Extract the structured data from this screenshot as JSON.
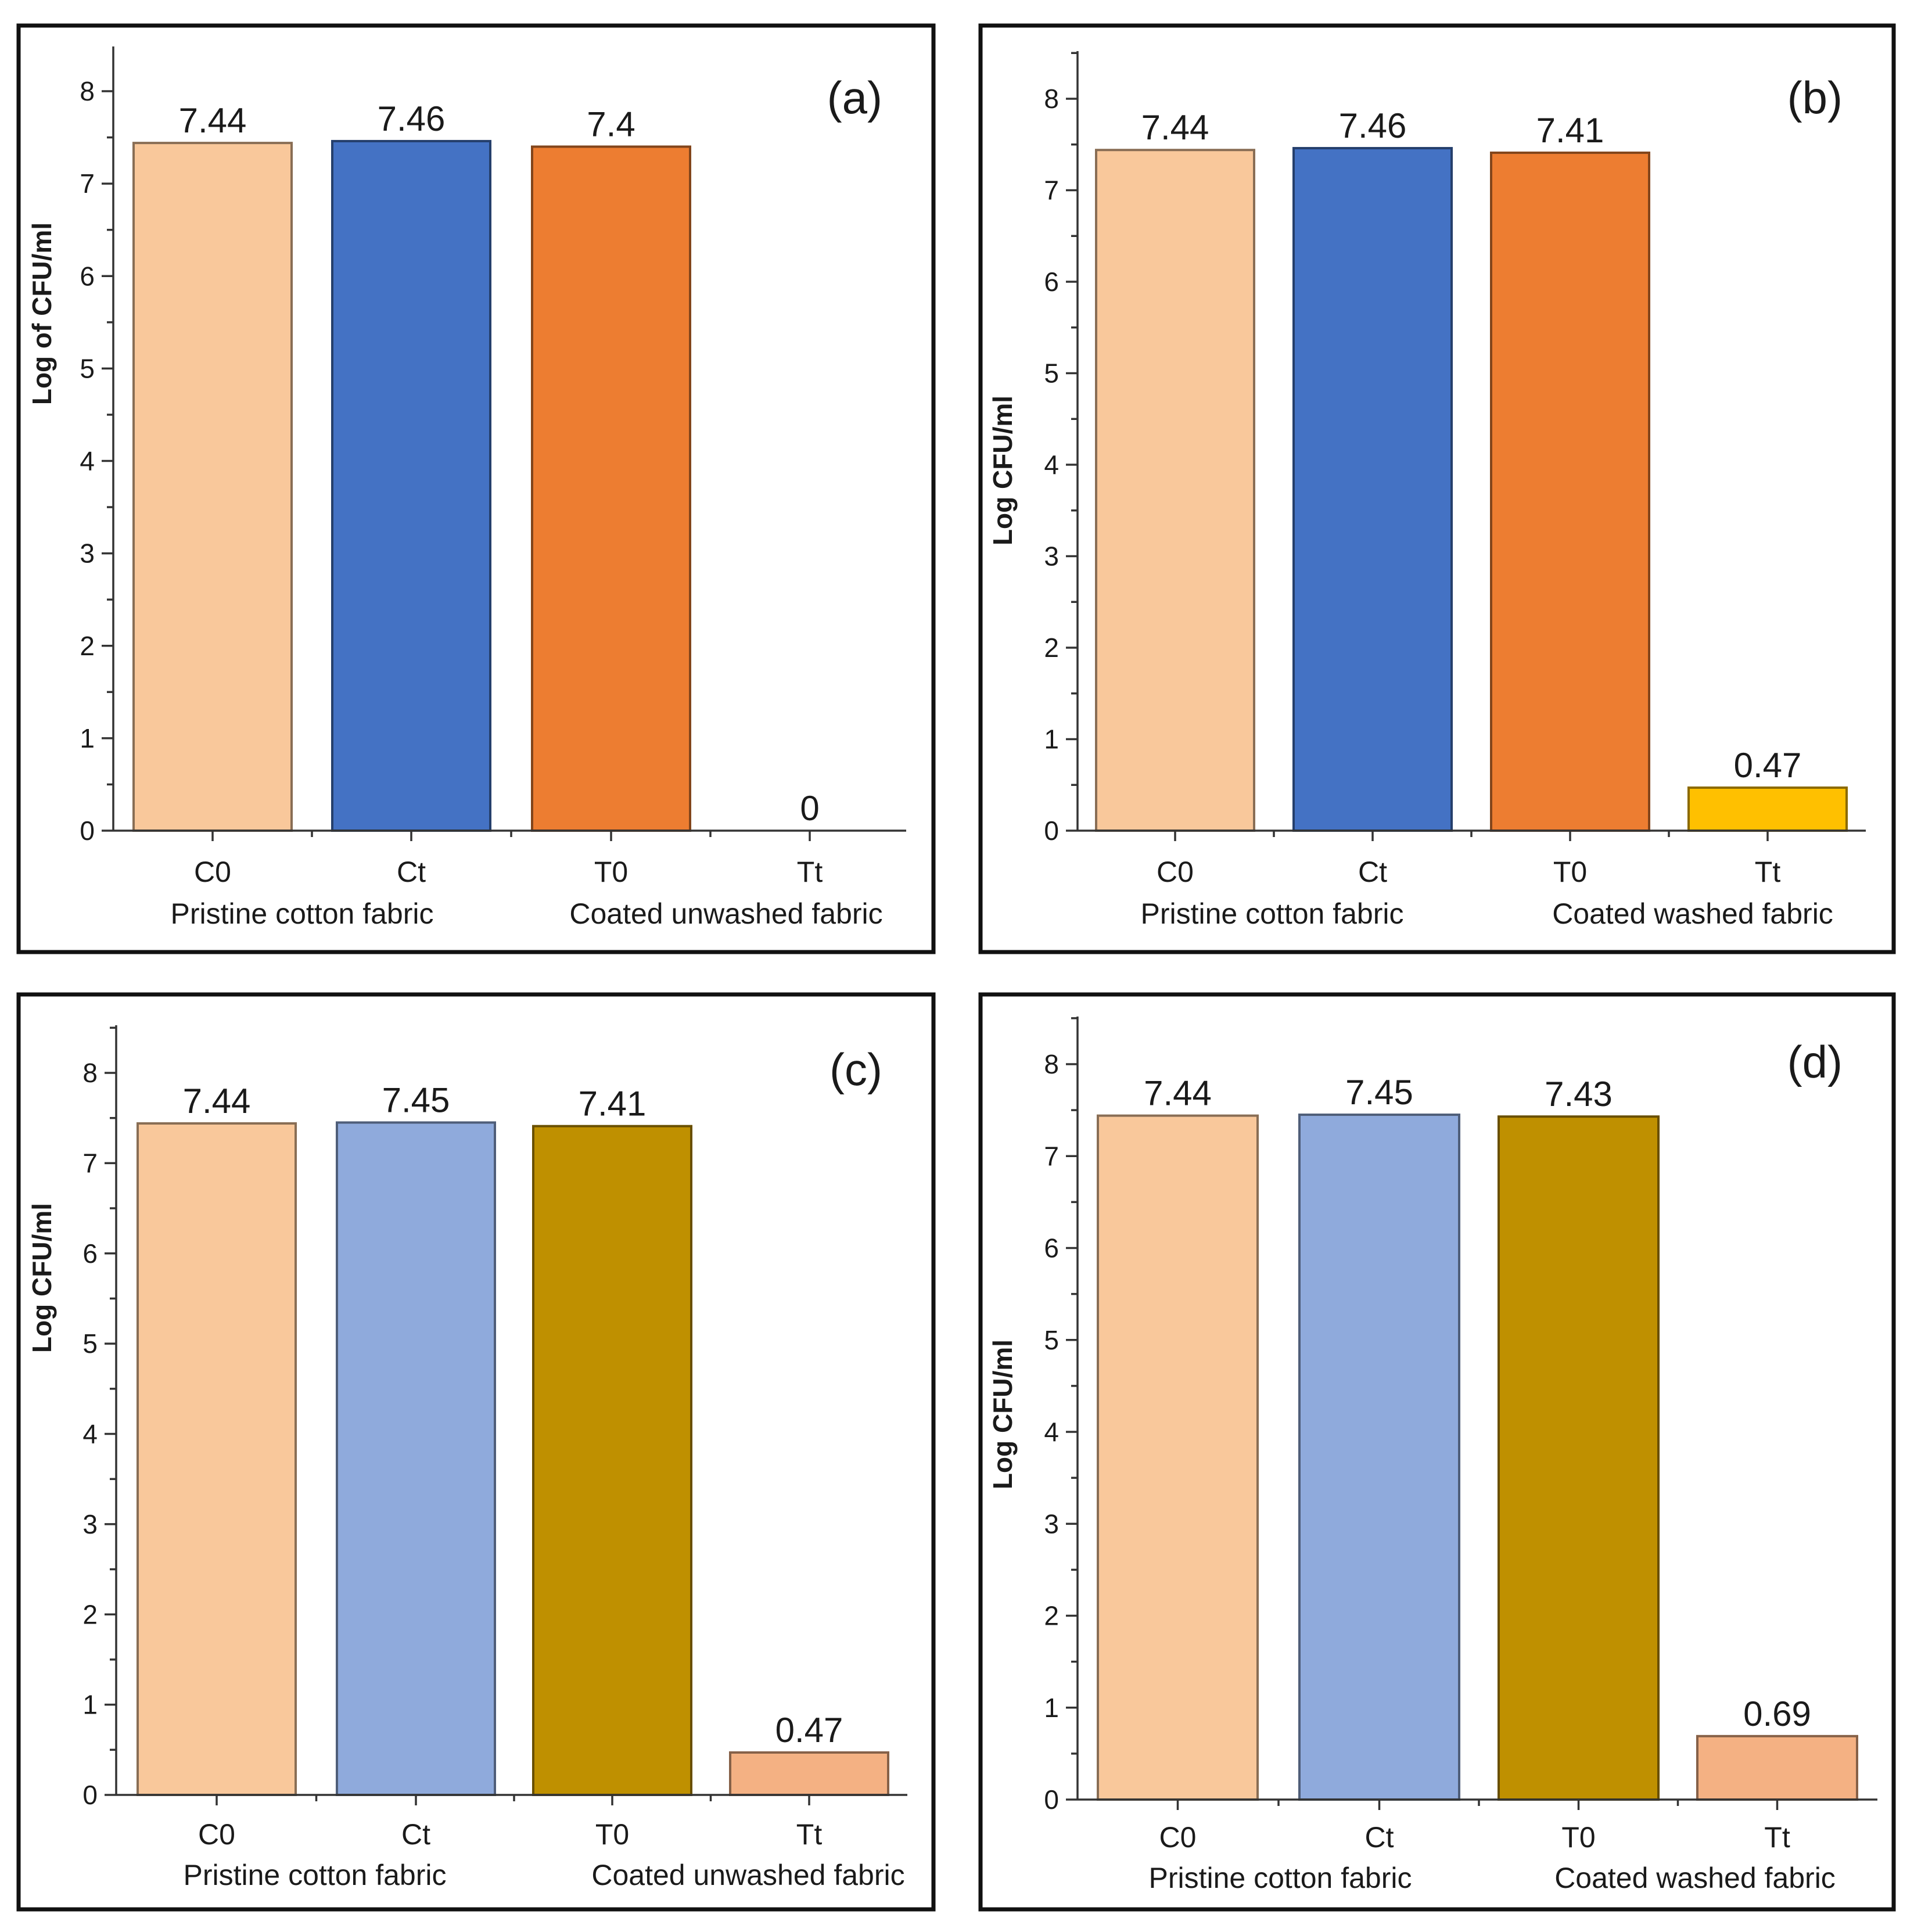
{
  "chart_data": [
    {
      "panel": "(a)",
      "type": "bar",
      "ylabel": "Log of CFU/ml",
      "ylim": [
        0,
        8.5
      ],
      "yticks": [
        0,
        1,
        2,
        3,
        4,
        5,
        6,
        7,
        8
      ],
      "categories": [
        "C0",
        "Ct",
        "T0",
        "Tt"
      ],
      "values": [
        7.44,
        7.46,
        7.4,
        0
      ],
      "value_labels": [
        "7.44",
        "7.46",
        "7.4",
        "0"
      ],
      "colors": [
        "#f9c89b",
        "#4472c4",
        "#ed7d31",
        "#ffc000"
      ],
      "groups": [
        "Pristine cotton fabric",
        "Coated unwashed fabric"
      ]
    },
    {
      "panel": "(b)",
      "type": "bar",
      "ylabel": "Log CFU/ml",
      "ylim": [
        0,
        8.5
      ],
      "yticks": [
        0,
        1,
        2,
        3,
        4,
        5,
        6,
        7,
        8
      ],
      "categories": [
        "C0",
        "Ct",
        "T0",
        "Tt"
      ],
      "values": [
        7.44,
        7.46,
        7.41,
        0.47
      ],
      "value_labels": [
        "7.44",
        "7.46",
        "7.41",
        "0.47"
      ],
      "colors": [
        "#f9c89b",
        "#4472c4",
        "#ed7d31",
        "#ffc000"
      ],
      "groups": [
        "Pristine cotton fabric",
        "Coated washed fabric"
      ]
    },
    {
      "panel": "(c)",
      "type": "bar",
      "ylabel": "Log CFU/ml",
      "ylim": [
        0,
        8.5
      ],
      "yticks": [
        0,
        1,
        2,
        3,
        4,
        5,
        6,
        7,
        8
      ],
      "categories": [
        "C0",
        "Ct",
        "T0",
        "Tt"
      ],
      "values": [
        7.44,
        7.45,
        7.41,
        0.47
      ],
      "value_labels": [
        "7.44",
        "7.45",
        "7.41",
        "0.47"
      ],
      "colors": [
        "#f9c89b",
        "#8faadc",
        "#bf9000",
        "#f4b183"
      ],
      "groups": [
        "Pristine cotton fabric",
        "Coated unwashed fabric"
      ]
    },
    {
      "panel": "(d)",
      "type": "bar",
      "ylabel": "Log CFU/ml",
      "ylim": [
        0,
        8.5
      ],
      "yticks": [
        0,
        1,
        2,
        3,
        4,
        5,
        6,
        7,
        8
      ],
      "categories": [
        "C0",
        "Ct",
        "T0",
        "Tt"
      ],
      "values": [
        7.44,
        7.45,
        7.43,
        0.69
      ],
      "value_labels": [
        "7.44",
        "7.45",
        "7.43",
        "0.69"
      ],
      "colors": [
        "#f9c89b",
        "#8faadc",
        "#bf9000",
        "#f4b183"
      ],
      "groups": [
        "Pristine cotton fabric",
        "Coated washed fabric"
      ]
    }
  ]
}
